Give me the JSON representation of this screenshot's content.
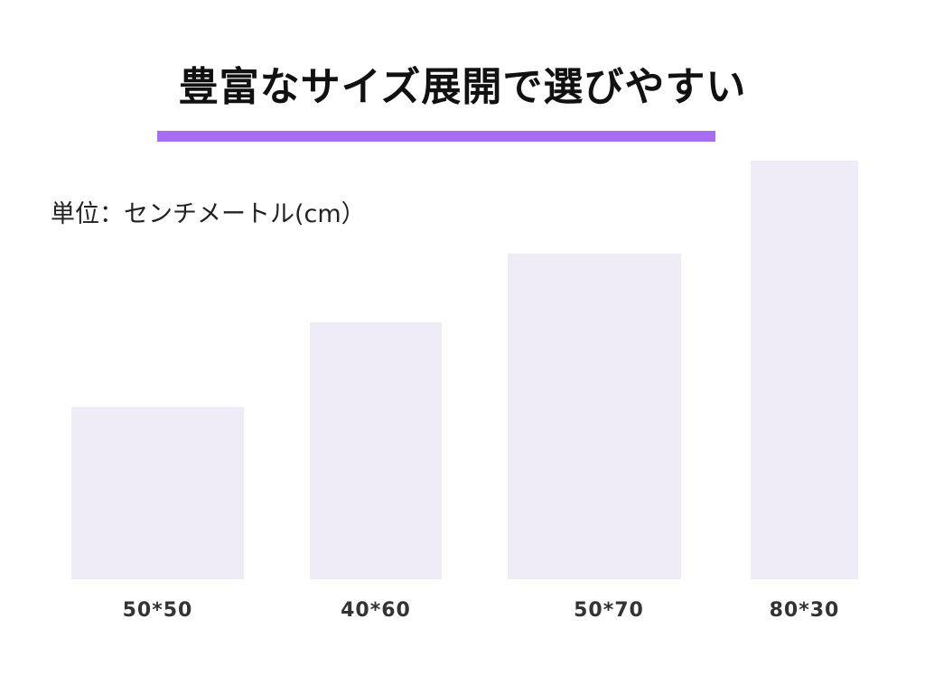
{
  "title": "豊富なサイズ展開で選びやすい",
  "accent_color": "#a86ef0",
  "block_color": "#efecf8",
  "unit_label": "単位：センチメートル(cm）",
  "sizes": [
    {
      "label": "50*50"
    },
    {
      "label": "40*60"
    },
    {
      "label": "50*70"
    },
    {
      "label": "80*30"
    }
  ]
}
